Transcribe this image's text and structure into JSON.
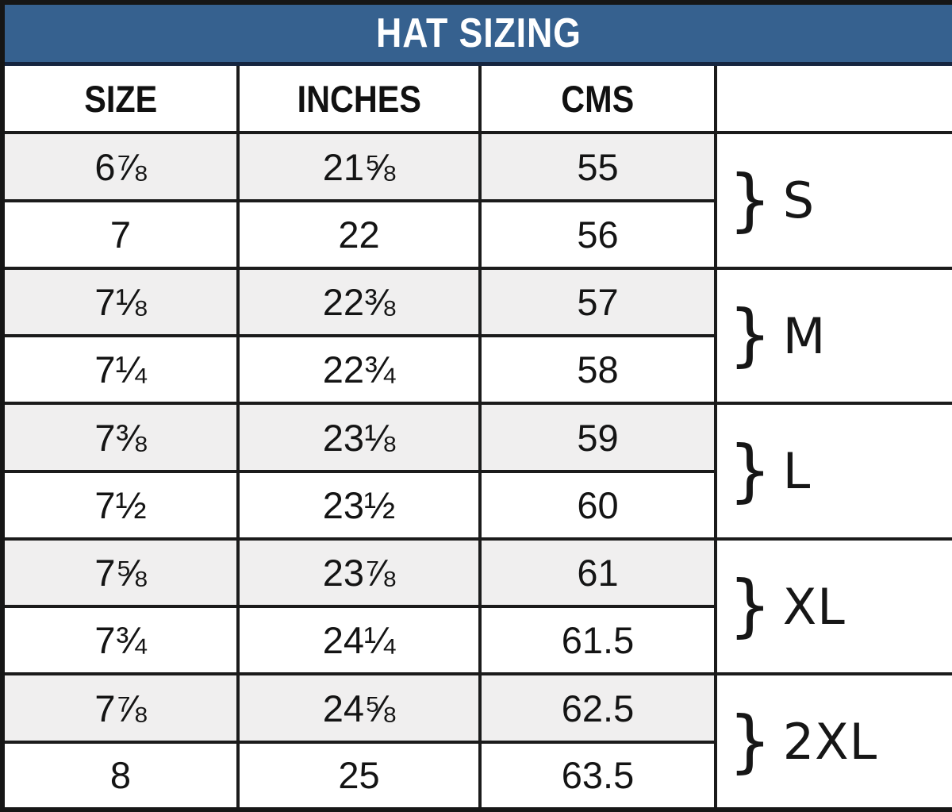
{
  "title": "HAT SIZING",
  "columns": {
    "size": "SIZE",
    "inches": "INCHES",
    "cms": "CMS",
    "group": ""
  },
  "rows": [
    {
      "size": "6⅞",
      "inches": "21⅝",
      "cms": "55"
    },
    {
      "size": "7",
      "inches": "22",
      "cms": "56"
    },
    {
      "size": "7⅛",
      "inches": "22⅜",
      "cms": "57"
    },
    {
      "size": "7¼",
      "inches": "22¾",
      "cms": "58"
    },
    {
      "size": "7⅜",
      "inches": "23⅛",
      "cms": "59"
    },
    {
      "size": "7½",
      "inches": "23½",
      "cms": "60"
    },
    {
      "size": "7⅝",
      "inches": "23⅞",
      "cms": "61"
    },
    {
      "size": "7¾",
      "inches": "24¼",
      "cms": "61.5"
    },
    {
      "size": "7⅞",
      "inches": "24⅝",
      "cms": "62.5"
    },
    {
      "size": "8",
      "inches": "25",
      "cms": "63.5"
    }
  ],
  "groups": [
    {
      "brace": "}",
      "label": "S"
    },
    {
      "brace": "}",
      "label": "M"
    },
    {
      "brace": "}",
      "label": "L"
    },
    {
      "brace": "}",
      "label": "XL"
    },
    {
      "brace": "}",
      "label": "2XL"
    }
  ],
  "colors": {
    "title_bg": "#36618f",
    "title_text": "#ffffff",
    "shaded_row_bg": "#f0efef",
    "border": "#1b1b1b"
  }
}
